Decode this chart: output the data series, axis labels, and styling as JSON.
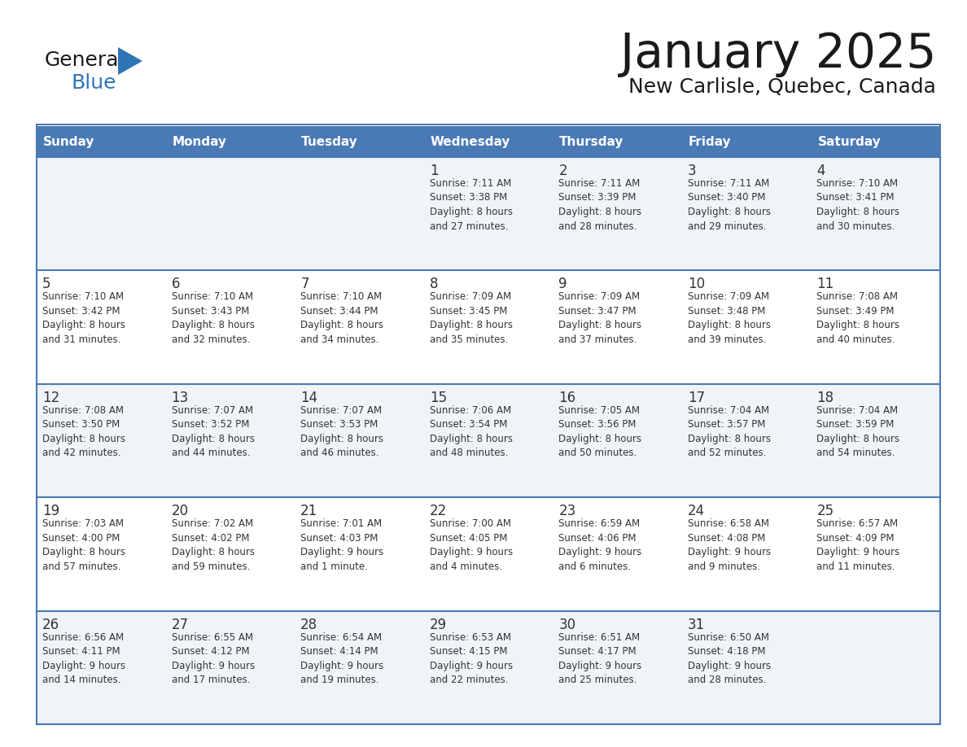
{
  "title": "January 2025",
  "subtitle": "New Carlisle, Quebec, Canada",
  "days_of_week": [
    "Sunday",
    "Monday",
    "Tuesday",
    "Wednesday",
    "Thursday",
    "Friday",
    "Saturday"
  ],
  "header_bg": "#4a7ab5",
  "header_text": "#FFFFFF",
  "cell_bg": "#FFFFFF",
  "cell_bg_alt": "#f0f4f8",
  "line_color": "#4a7ab5",
  "day_num_color": "#333333",
  "text_color": "#333333",
  "title_color": "#1a1a1a",
  "logo_general_color": "#1a1a1a",
  "logo_blue_color": "#2E75B6",
  "calendar_data": [
    [
      {
        "day": null,
        "info": ""
      },
      {
        "day": null,
        "info": ""
      },
      {
        "day": null,
        "info": ""
      },
      {
        "day": 1,
        "info": "Sunrise: 7:11 AM\nSunset: 3:38 PM\nDaylight: 8 hours\nand 27 minutes."
      },
      {
        "day": 2,
        "info": "Sunrise: 7:11 AM\nSunset: 3:39 PM\nDaylight: 8 hours\nand 28 minutes."
      },
      {
        "day": 3,
        "info": "Sunrise: 7:11 AM\nSunset: 3:40 PM\nDaylight: 8 hours\nand 29 minutes."
      },
      {
        "day": 4,
        "info": "Sunrise: 7:10 AM\nSunset: 3:41 PM\nDaylight: 8 hours\nand 30 minutes."
      }
    ],
    [
      {
        "day": 5,
        "info": "Sunrise: 7:10 AM\nSunset: 3:42 PM\nDaylight: 8 hours\nand 31 minutes."
      },
      {
        "day": 6,
        "info": "Sunrise: 7:10 AM\nSunset: 3:43 PM\nDaylight: 8 hours\nand 32 minutes."
      },
      {
        "day": 7,
        "info": "Sunrise: 7:10 AM\nSunset: 3:44 PM\nDaylight: 8 hours\nand 34 minutes."
      },
      {
        "day": 8,
        "info": "Sunrise: 7:09 AM\nSunset: 3:45 PM\nDaylight: 8 hours\nand 35 minutes."
      },
      {
        "day": 9,
        "info": "Sunrise: 7:09 AM\nSunset: 3:47 PM\nDaylight: 8 hours\nand 37 minutes."
      },
      {
        "day": 10,
        "info": "Sunrise: 7:09 AM\nSunset: 3:48 PM\nDaylight: 8 hours\nand 39 minutes."
      },
      {
        "day": 11,
        "info": "Sunrise: 7:08 AM\nSunset: 3:49 PM\nDaylight: 8 hours\nand 40 minutes."
      }
    ],
    [
      {
        "day": 12,
        "info": "Sunrise: 7:08 AM\nSunset: 3:50 PM\nDaylight: 8 hours\nand 42 minutes."
      },
      {
        "day": 13,
        "info": "Sunrise: 7:07 AM\nSunset: 3:52 PM\nDaylight: 8 hours\nand 44 minutes."
      },
      {
        "day": 14,
        "info": "Sunrise: 7:07 AM\nSunset: 3:53 PM\nDaylight: 8 hours\nand 46 minutes."
      },
      {
        "day": 15,
        "info": "Sunrise: 7:06 AM\nSunset: 3:54 PM\nDaylight: 8 hours\nand 48 minutes."
      },
      {
        "day": 16,
        "info": "Sunrise: 7:05 AM\nSunset: 3:56 PM\nDaylight: 8 hours\nand 50 minutes."
      },
      {
        "day": 17,
        "info": "Sunrise: 7:04 AM\nSunset: 3:57 PM\nDaylight: 8 hours\nand 52 minutes."
      },
      {
        "day": 18,
        "info": "Sunrise: 7:04 AM\nSunset: 3:59 PM\nDaylight: 8 hours\nand 54 minutes."
      }
    ],
    [
      {
        "day": 19,
        "info": "Sunrise: 7:03 AM\nSunset: 4:00 PM\nDaylight: 8 hours\nand 57 minutes."
      },
      {
        "day": 20,
        "info": "Sunrise: 7:02 AM\nSunset: 4:02 PM\nDaylight: 8 hours\nand 59 minutes."
      },
      {
        "day": 21,
        "info": "Sunrise: 7:01 AM\nSunset: 4:03 PM\nDaylight: 9 hours\nand 1 minute."
      },
      {
        "day": 22,
        "info": "Sunrise: 7:00 AM\nSunset: 4:05 PM\nDaylight: 9 hours\nand 4 minutes."
      },
      {
        "day": 23,
        "info": "Sunrise: 6:59 AM\nSunset: 4:06 PM\nDaylight: 9 hours\nand 6 minutes."
      },
      {
        "day": 24,
        "info": "Sunrise: 6:58 AM\nSunset: 4:08 PM\nDaylight: 9 hours\nand 9 minutes."
      },
      {
        "day": 25,
        "info": "Sunrise: 6:57 AM\nSunset: 4:09 PM\nDaylight: 9 hours\nand 11 minutes."
      }
    ],
    [
      {
        "day": 26,
        "info": "Sunrise: 6:56 AM\nSunset: 4:11 PM\nDaylight: 9 hours\nand 14 minutes."
      },
      {
        "day": 27,
        "info": "Sunrise: 6:55 AM\nSunset: 4:12 PM\nDaylight: 9 hours\nand 17 minutes."
      },
      {
        "day": 28,
        "info": "Sunrise: 6:54 AM\nSunset: 4:14 PM\nDaylight: 9 hours\nand 19 minutes."
      },
      {
        "day": 29,
        "info": "Sunrise: 6:53 AM\nSunset: 4:15 PM\nDaylight: 9 hours\nand 22 minutes."
      },
      {
        "day": 30,
        "info": "Sunrise: 6:51 AM\nSunset: 4:17 PM\nDaylight: 9 hours\nand 25 minutes."
      },
      {
        "day": 31,
        "info": "Sunrise: 6:50 AM\nSunset: 4:18 PM\nDaylight: 9 hours\nand 28 minutes."
      },
      {
        "day": null,
        "info": ""
      }
    ]
  ]
}
